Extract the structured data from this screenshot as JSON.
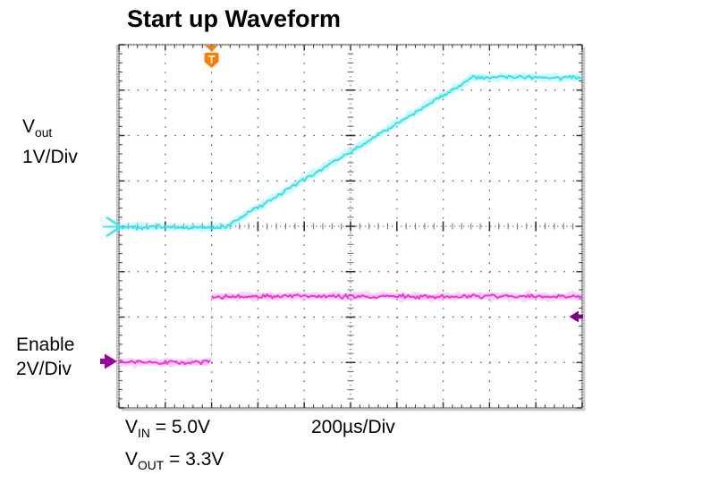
{
  "title": "Start up Waveform",
  "channel_labels": {
    "vout": {
      "base": "V",
      "sub": "out",
      "scale": "1V/Div"
    },
    "enable": {
      "name": "Enable",
      "scale": "2V/Div"
    }
  },
  "footer": {
    "vin": {
      "base": "V",
      "sub": "IN",
      "value": " = 5.0V"
    },
    "vout": {
      "base": "V",
      "sub": "OUT",
      "value": " = 3.3V"
    },
    "timebase": "200µs/Div"
  },
  "markers": {
    "trigger": {
      "label": "T",
      "color": "#FF7C00",
      "position_us": 400
    },
    "vout_reference": {
      "shape": "chevron-right",
      "color": "#3EE6F2"
    },
    "enable_reference": {
      "shape": "arrow-right",
      "color": "#A000A0"
    },
    "right_cursor": {
      "shape": "arrow-left",
      "color": "#80008C"
    }
  },
  "chart_data": {
    "type": "line",
    "title": "Start up Waveform",
    "x_axis": {
      "timebase": "200µs/Div",
      "divisions": 10,
      "range_us": [
        0,
        2000
      ]
    },
    "y_axis": {
      "divisions": 8
    },
    "grid_style": "dotted major divisions, ticked center crosshair, ticked border",
    "trigger_us": 400,
    "series": [
      {
        "name": "Vout",
        "scale": "1V/Div",
        "volts_per_div": 1,
        "color_core": "#35E2EF",
        "color_halo": "#8FF1F7",
        "points": [
          {
            "t_us": 0,
            "v": 0
          },
          {
            "t_us": 460,
            "v": 0
          },
          {
            "t_us": 1530,
            "v": 3.3
          },
          {
            "t_us": 2000,
            "v": 3.3
          }
        ]
      },
      {
        "name": "Enable",
        "scale": "2V/Div",
        "volts_per_div": 2,
        "color_core": "#F433E8",
        "color_halo": "#FA9CF2",
        "points": [
          {
            "t_us": 0,
            "v": 0
          },
          {
            "t_us": 400,
            "v": 0
          },
          {
            "t_us": 400,
            "v": 2.9
          },
          {
            "t_us": 2000,
            "v": 2.9
          }
        ]
      }
    ],
    "annotations": [
      "VIN = 5.0V",
      "VOUT = 3.3V",
      "200µs/Div"
    ]
  }
}
